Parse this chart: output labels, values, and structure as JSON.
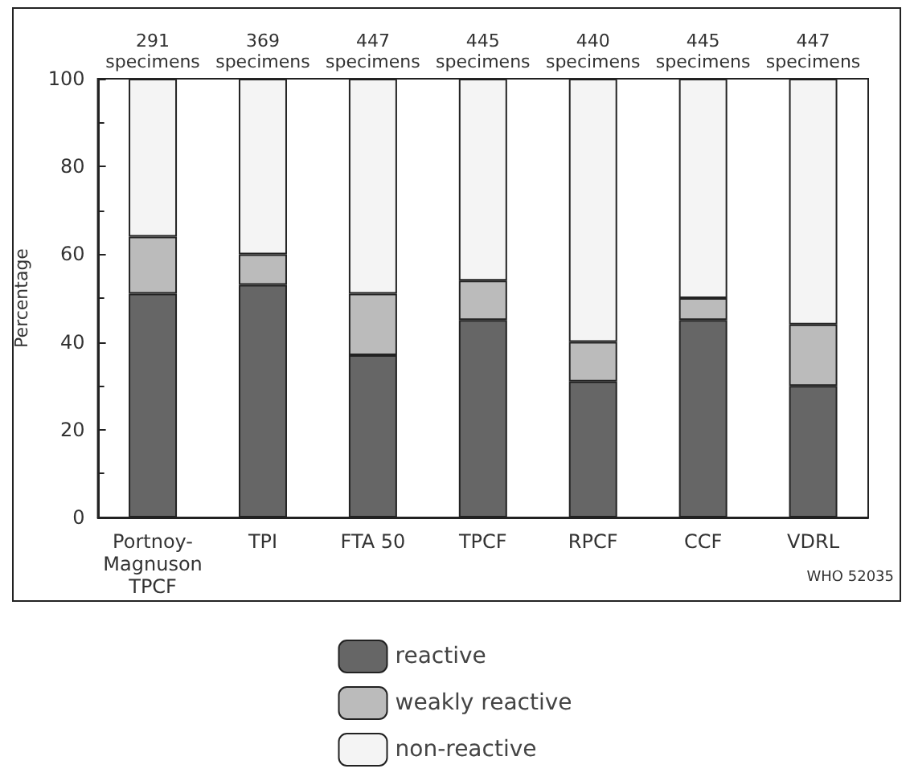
{
  "chart_data": {
    "type": "bar",
    "stacked": true,
    "ylabel": "Percentage",
    "categories": [
      "Portnoy-\nMagnuson\nTPCF",
      "TPI",
      "FTA 50",
      "TPCF",
      "RPCF",
      "CCF",
      "VDRL"
    ],
    "series": [
      {
        "name": "reactive",
        "color": "#666666",
        "values": [
          51,
          53,
          37,
          45,
          31,
          45,
          30
        ]
      },
      {
        "name": "weakly reactive",
        "color": "#bbbbbb",
        "values": [
          13,
          7,
          14,
          9,
          9,
          5,
          14
        ]
      },
      {
        "name": "non-reactive",
        "color": "#f4f4f4",
        "values": [
          36,
          40,
          49,
          46,
          60,
          50,
          56
        ]
      }
    ],
    "ylim": [
      0,
      100
    ],
    "yticks": [
      0,
      20,
      40,
      60,
      80,
      100
    ],
    "grid": false,
    "legend": "bottom",
    "annotations": [
      {
        "text": "291\nspecimens",
        "x": "Portnoy-\nMagnuson\nTPCF",
        "y": 100
      },
      {
        "text": "369\nspecimens",
        "x": "TPI",
        "y": 100
      },
      {
        "text": "447\nspecimens",
        "x": "FTA 50",
        "y": 100
      },
      {
        "text": "445\nspecimens",
        "x": "TPCF",
        "y": 100
      },
      {
        "text": "440\nspecimens",
        "x": "RPCF",
        "y": 100
      },
      {
        "text": "445\nspecimens",
        "x": "CCF",
        "y": 100
      },
      {
        "text": "447\nspecimens",
        "x": "VDRL",
        "y": 100
      },
      "WHO 52035"
    ]
  }
}
